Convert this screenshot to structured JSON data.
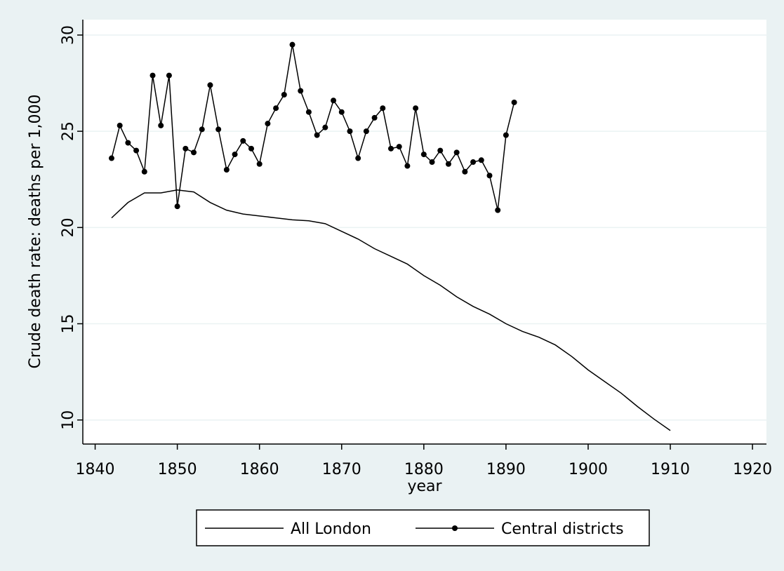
{
  "chart_data": {
    "type": "line",
    "xlabel": "year",
    "ylabel": "Crude death rate:  deaths per 1,000",
    "xlim": [
      1838.5,
      1921.7
    ],
    "ylim": [
      8.75,
      30.8
    ],
    "xticks": [
      1840,
      1850,
      1860,
      1870,
      1880,
      1890,
      1900,
      1910,
      1920
    ],
    "yticks": [
      10,
      15,
      20,
      25,
      30
    ],
    "grid": true,
    "legend": "bottom",
    "series": [
      {
        "name": "All London",
        "color": "#000000",
        "marker": false,
        "x": [
          1842,
          1844,
          1846,
          1848,
          1850,
          1852,
          1854,
          1856,
          1858,
          1860,
          1862,
          1864,
          1866,
          1868,
          1870,
          1872,
          1874,
          1876,
          1878,
          1880,
          1882,
          1884,
          1886,
          1888,
          1890,
          1892,
          1894,
          1896,
          1898,
          1900,
          1902,
          1904,
          1906,
          1908,
          1910
        ],
        "values": [
          20.5,
          21.3,
          21.8,
          21.8,
          21.95,
          21.85,
          21.3,
          20.9,
          20.7,
          20.6,
          20.5,
          20.4,
          20.35,
          20.2,
          19.8,
          19.4,
          18.9,
          18.5,
          18.1,
          17.5,
          17.0,
          16.4,
          15.9,
          15.5,
          15.0,
          14.6,
          14.3,
          13.9,
          13.3,
          12.6,
          12.0,
          11.4,
          10.7,
          10.05,
          9.45
        ]
      },
      {
        "name": "Central districts",
        "color": "#000000",
        "marker": true,
        "x": [
          1842,
          1843,
          1844,
          1845,
          1846,
          1847,
          1848,
          1849,
          1850,
          1851,
          1852,
          1853,
          1854,
          1855,
          1856,
          1857,
          1858,
          1859,
          1860,
          1861,
          1862,
          1863,
          1864,
          1865,
          1866,
          1867,
          1868,
          1869,
          1870,
          1871,
          1872,
          1873,
          1874,
          1875,
          1876,
          1877,
          1878,
          1879,
          1880,
          1881,
          1882,
          1883,
          1884,
          1885,
          1886,
          1887,
          1888,
          1889,
          1890,
          1891
        ],
        "values": [
          23.6,
          25.3,
          24.4,
          24.0,
          22.9,
          27.9,
          25.3,
          27.9,
          21.1,
          24.1,
          23.9,
          25.1,
          27.4,
          25.1,
          23.0,
          23.8,
          24.5,
          24.1,
          23.3,
          25.4,
          26.2,
          26.9,
          29.5,
          27.1,
          26.0,
          24.8,
          25.2,
          26.6,
          26.0,
          25.0,
          23.6,
          25.0,
          25.7,
          26.2,
          24.1,
          24.2,
          23.2,
          26.2,
          23.8,
          23.4,
          24.0,
          23.3,
          23.9,
          22.9,
          23.4,
          23.5,
          22.7,
          20.9,
          24.8,
          26.5
        ]
      }
    ]
  }
}
